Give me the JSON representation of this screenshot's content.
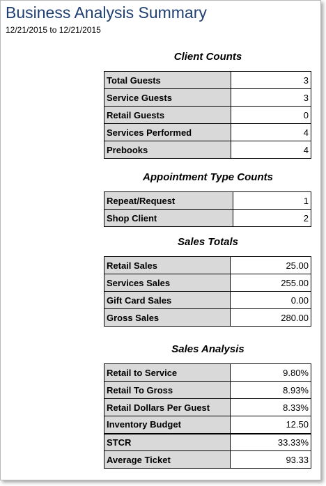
{
  "header": {
    "title": "Business Analysis Summary",
    "date_range": "12/21/2015 to 12/21/2015"
  },
  "client_counts": {
    "title": "Client Counts",
    "rows": [
      {
        "label": "Total Guests",
        "value": "3"
      },
      {
        "label": "Service Guests",
        "value": "3"
      },
      {
        "label": "Retail Guests",
        "value": "0"
      },
      {
        "label": "Services Performed",
        "value": "4"
      },
      {
        "label": "Prebooks",
        "value": "4"
      }
    ]
  },
  "appointment_type_counts": {
    "title": "Appointment Type Counts",
    "rows": [
      {
        "label": "Repeat/Request",
        "value": "1"
      },
      {
        "label": "Shop Client",
        "value": "2"
      }
    ]
  },
  "sales_totals": {
    "title": "Sales Totals",
    "rows": [
      {
        "label": "Retail Sales",
        "value": "25.00"
      },
      {
        "label": "Services Sales",
        "value": "255.00"
      },
      {
        "label": "Gift Card Sales",
        "value": "0.00"
      },
      {
        "label": "Gross Sales",
        "value": "280.00"
      }
    ]
  },
  "sales_analysis": {
    "title": "Sales Analysis",
    "rows": [
      {
        "label": "Retail to Service",
        "value": "9.80%"
      },
      {
        "label": "Retail To Gross",
        "value": "8.93%"
      },
      {
        "label": "Retail Dollars Per Guest",
        "value": "8.33%"
      },
      {
        "label": "Inventory Budget",
        "value": "12.50"
      },
      {
        "label": "STCR",
        "value": "33.33%"
      },
      {
        "label": "Average Ticket",
        "value": "93.33"
      }
    ]
  }
}
